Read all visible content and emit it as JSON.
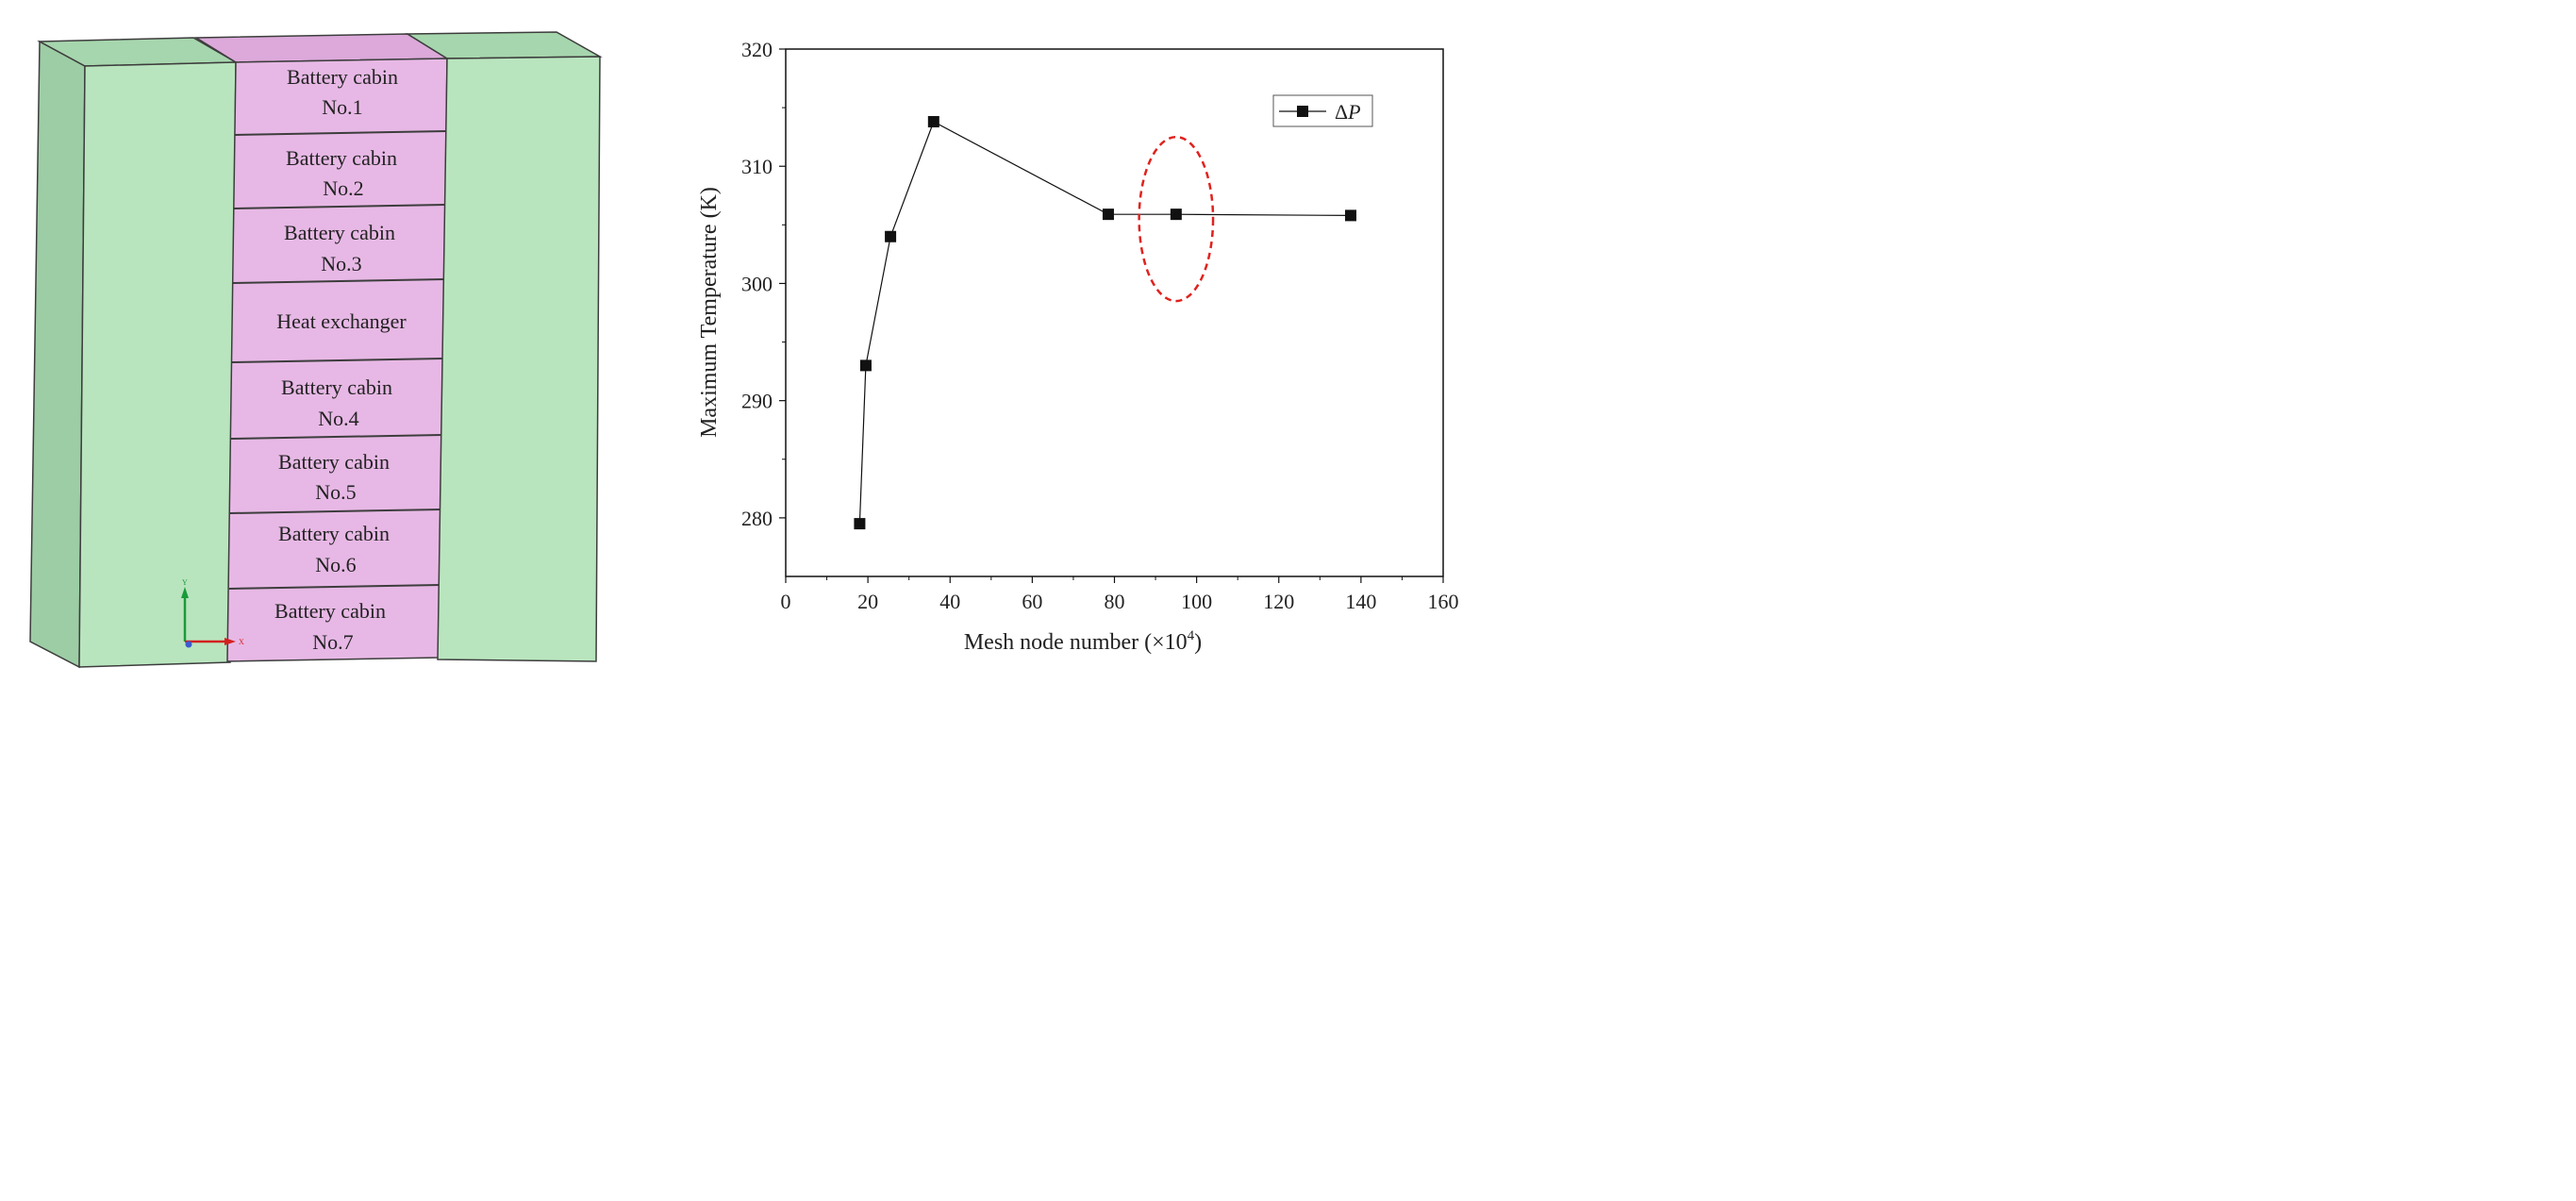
{
  "model": {
    "cells": [
      {
        "line1": "Battery cabin",
        "line2": "No.1"
      },
      {
        "line1": "Battery cabin",
        "line2": "No.2"
      },
      {
        "line1": "Battery cabin",
        "line2": "No.3"
      },
      {
        "line1": "Heat exchanger",
        "line2": ""
      },
      {
        "line1": "Battery cabin",
        "line2": "No.4"
      },
      {
        "line1": "Battery cabin",
        "line2": "No.5"
      },
      {
        "line1": "Battery cabin",
        "line2": "No.6"
      },
      {
        "line1": "Battery cabin",
        "line2": "No.7"
      }
    ],
    "axis_triad": {
      "y": "Y",
      "x": "X"
    },
    "colors": {
      "green_face": "#b9e5be",
      "green_side": "#9dcda5",
      "green_top": "#a6d6ad",
      "pink_face": "#e7b8e5",
      "pink_top": "#dca9da",
      "edge": "#3d3d3d"
    }
  },
  "chart_data": {
    "type": "line",
    "x": [
      18,
      19.5,
      25.5,
      36,
      78.5,
      95,
      137.5
    ],
    "series": [
      {
        "name": "ΔP",
        "values": [
          279.5,
          293,
          304,
          313.8,
          305.9,
          305.9,
          305.8
        ]
      }
    ],
    "xlabel": "Mesh node number (×10",
    "xlabel_sup": "4",
    "xlabel_close": ")",
    "ylabel": "Maximum Temperature (K)",
    "xlim": [
      0,
      160
    ],
    "ylim": [
      275,
      320
    ],
    "xticks": [
      "0",
      "20",
      "40",
      "60",
      "80",
      "100",
      "120",
      "140",
      "160"
    ],
    "yticks": [
      "280",
      "290",
      "300",
      "310",
      "320"
    ],
    "legend": {
      "label_prefix": "Δ",
      "label_var": "P",
      "position": "top-right"
    },
    "highlight": {
      "shape": "dashed-ellipse",
      "color": "#e0221e",
      "center_x": 95,
      "center_y": 305.5,
      "rx": 9,
      "ry": 7
    }
  }
}
